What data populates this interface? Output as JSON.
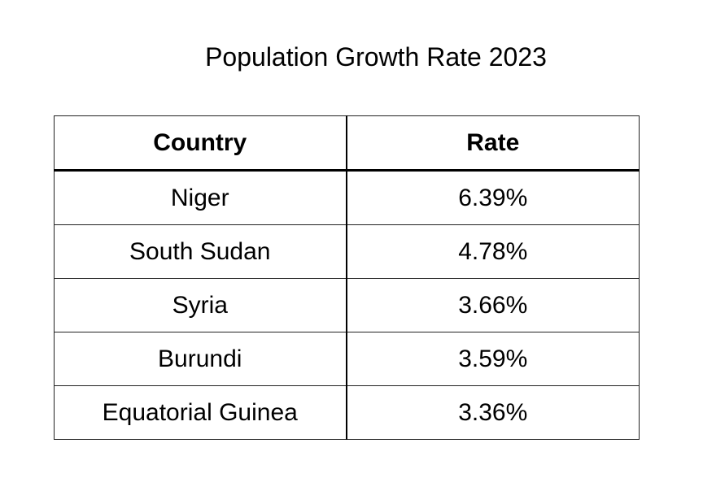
{
  "chart_data": {
    "type": "table",
    "title": "Population Growth Rate 2023",
    "columns": [
      "Country",
      "Rate"
    ],
    "rows": [
      {
        "country": "Niger",
        "rate": "6.39%"
      },
      {
        "country": "South Sudan",
        "rate": "4.78%"
      },
      {
        "country": "Syria",
        "rate": "3.66%"
      },
      {
        "country": "Burundi",
        "rate": "3.59%"
      },
      {
        "country": "Equatorial Guinea",
        "rate": "3.36%"
      }
    ]
  }
}
